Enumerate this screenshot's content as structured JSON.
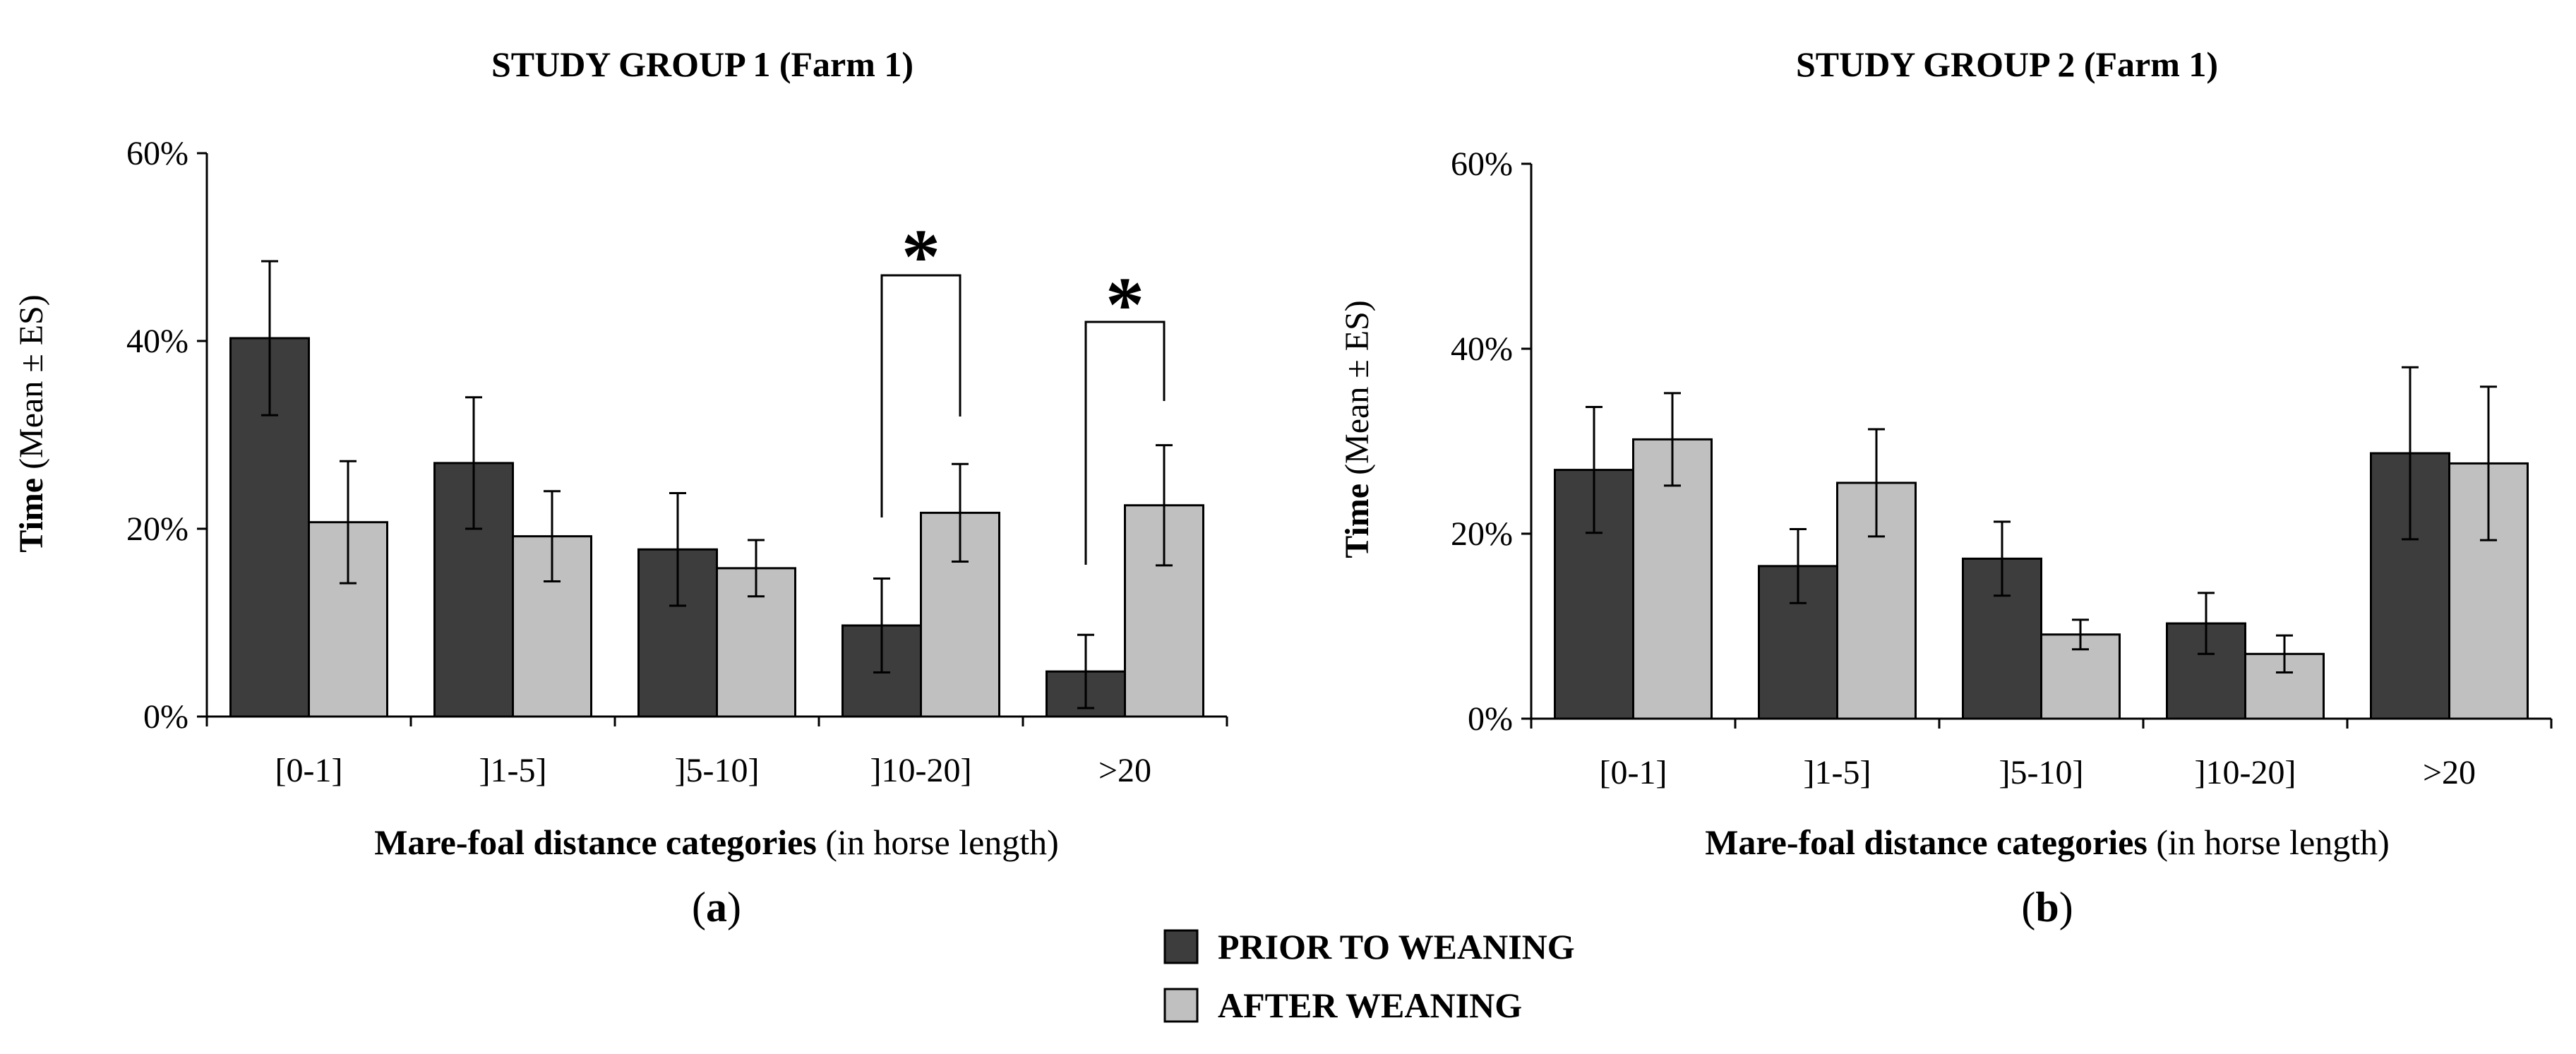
{
  "chart_data": [
    {
      "type": "bar",
      "panel_label": "a",
      "title": "STUDY GROUP 1 (Farm 1)",
      "ylabel_bold": "Time",
      "ylabel_rest": " (Mean ± ES)",
      "xlabel_bold": "Mare-foal distance categories",
      "xlabel_rest": " (in horse length)",
      "categories": [
        "[0-1]",
        "]1-5]",
        "]5-10]",
        "]10-20]",
        ">20"
      ],
      "ylim": [
        0,
        60
      ],
      "yticks": [
        "0%",
        "20%",
        "40%",
        "60%"
      ],
      "series": [
        {
          "name": "PRIOR TO WEANING",
          "values": [
            40.3,
            27.0,
            17.8,
            9.7,
            4.8
          ],
          "errors": [
            8.2,
            7.0,
            6.0,
            5.0,
            3.9
          ]
        },
        {
          "name": "AFTER WEANING",
          "values": [
            20.7,
            19.2,
            15.8,
            21.7,
            22.5
          ],
          "errors": [
            6.5,
            4.8,
            3.0,
            5.2,
            6.4
          ]
        }
      ],
      "significance": [
        {
          "category": "]10-20]",
          "label": "*"
        },
        {
          "category": ">20",
          "label": "*"
        }
      ]
    },
    {
      "type": "bar",
      "panel_label": "b",
      "title": "STUDY GROUP 2 (Farm 1)",
      "ylabel_bold": "Time",
      "ylabel_rest": " (Mean ± ES)",
      "xlabel_bold": "Mare-foal distance categories",
      "xlabel_rest": " (in horse length)",
      "categories": [
        "[0-1]",
        "]1-5]",
        "]5-10]",
        "]10-20]",
        ">20"
      ],
      "ylim": [
        0,
        60
      ],
      "yticks": [
        "0%",
        "20%",
        "40%",
        "60%"
      ],
      "series": [
        {
          "name": "PRIOR TO WEANING",
          "values": [
            26.9,
            16.5,
            17.3,
            10.3,
            28.7
          ],
          "errors": [
            6.8,
            4.0,
            4.0,
            3.3,
            9.3
          ]
        },
        {
          "name": "AFTER WEANING",
          "values": [
            30.2,
            25.5,
            9.1,
            7.0,
            27.6
          ],
          "errors": [
            5.0,
            5.8,
            1.6,
            2.0,
            8.3
          ]
        }
      ],
      "significance": []
    }
  ],
  "legend": [
    {
      "label": "PRIOR TO WEANING",
      "color": "#3d3d3d"
    },
    {
      "label": "AFTER WEANING",
      "color": "#c0c0c0"
    }
  ],
  "colors": {
    "prior": "#3d3d3d",
    "after": "#c0c0c0",
    "axis": "#000000"
  }
}
